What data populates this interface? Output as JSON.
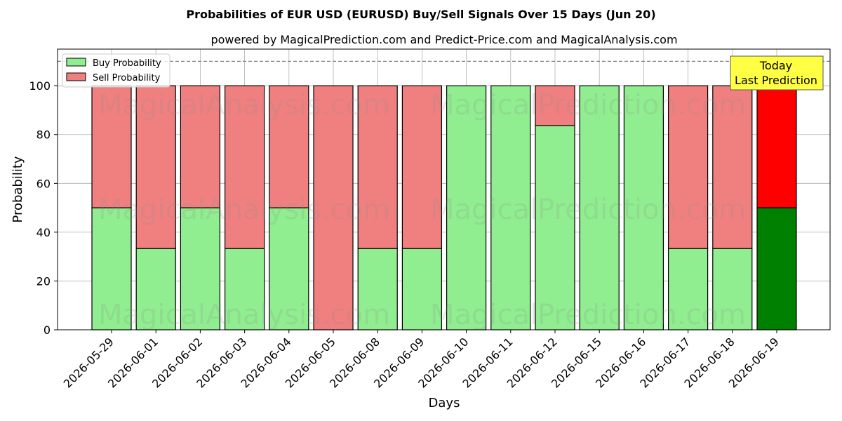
{
  "chart_data": {
    "type": "bar",
    "stacked": true,
    "title": "Probabilities of EUR USD (EURUSD) Buy/Sell Signals Over 15 Days (Jun 20)",
    "subtitle": "powered by MagicalPrediction.com and Predict-Price.com and MagicalAnalysis.com",
    "xlabel": "Days",
    "ylabel": "Probability",
    "ylim": [
      0,
      115
    ],
    "yticks": [
      0,
      20,
      40,
      60,
      80,
      100
    ],
    "grid": true,
    "legend_position": "top-left",
    "reference_line": 110,
    "categories": [
      "2026-05-29",
      "2026-06-01",
      "2026-06-02",
      "2026-06-03",
      "2026-06-04",
      "2026-06-05",
      "2026-06-08",
      "2026-06-09",
      "2026-06-10",
      "2026-06-11",
      "2026-06-12",
      "2026-06-15",
      "2026-06-16",
      "2026-06-17",
      "2026-06-18",
      "2026-06-19"
    ],
    "series": [
      {
        "name": "Buy Probability",
        "color": "#90ee90",
        "values": [
          50,
          33.3,
          50,
          33.3,
          50,
          0,
          33.3,
          33.3,
          100,
          100,
          83.7,
          100,
          100,
          33.3,
          33.3,
          50
        ]
      },
      {
        "name": "Sell Probability",
        "color": "#f08080",
        "values": [
          50,
          66.7,
          50,
          66.7,
          50,
          100,
          66.7,
          66.7,
          0,
          0,
          16.3,
          0,
          0,
          66.7,
          66.7,
          50
        ]
      }
    ],
    "highlight": {
      "index": 15,
      "buy_color": "#008000",
      "sell_color": "#ff0000"
    },
    "annotation": {
      "lines": [
        "Today",
        "Last Prediction"
      ],
      "background": "#ffff44"
    },
    "watermarks": [
      "MagicalAnalysis.com",
      "MagicalPrediction.com"
    ]
  }
}
